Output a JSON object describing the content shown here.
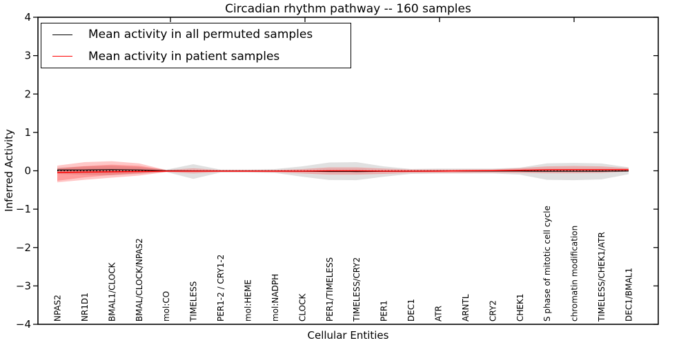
{
  "figure": {
    "title": "Circadian rhythm pathway -- 160 samples",
    "xlabel": "Cellular Entities",
    "ylabel": "Inferred Activity"
  },
  "legend": {
    "items": [
      {
        "label": "Mean activity in all permuted samples",
        "color": "#000000"
      },
      {
        "label": "Mean activity in patient samples",
        "color": "#ff0000"
      }
    ]
  },
  "chart_data": {
    "type": "line",
    "title": "Circadian rhythm pathway -- 160 samples",
    "xlabel": "Cellular Entities",
    "ylabel": "Inferred Activity",
    "ylim": [
      -4,
      4
    ],
    "yticks": [
      4,
      3,
      2,
      1,
      0,
      -1,
      -2,
      -3,
      -4
    ],
    "grid": false,
    "legend_position": "upper left",
    "zero_line": true,
    "categories": [
      "NPAS2",
      "NR1D1",
      "BMAL1/CLOCK",
      "BMAL/CLOCK/NPAS2",
      "mol:CO",
      "TIMELESS",
      "PER1-2 / CRY1-2",
      "mol:HEME",
      "mol:NADPH",
      "CLOCK",
      "PER1/TIMELESS",
      "TIMELESS/CRY2",
      "PER1",
      "DEC1",
      "ATR",
      "ARNTL",
      "CRY2",
      "CHEK1",
      "S phase of mitotic cell cycle",
      "chromatin modification",
      "TIMELESS/CHEK1/ATR",
      "DEC1/BMAL1"
    ],
    "series": [
      {
        "name": "Mean activity in all permuted samples",
        "color": "#000000",
        "values": [
          0.02,
          0.022,
          0.03,
          0.022,
          0.0,
          -0.002,
          -0.008,
          -0.008,
          -0.008,
          -0.01,
          -0.018,
          -0.02,
          -0.015,
          -0.01,
          -0.008,
          -0.008,
          -0.008,
          -0.008,
          -0.012,
          -0.012,
          -0.01,
          -0.005
        ]
      },
      {
        "name": "Mean activity in patient samples",
        "color": "#ff0000",
        "values": [
          -0.045,
          -0.035,
          -0.027,
          -0.018,
          -0.009,
          -0.009,
          -0.009,
          -0.009,
          -0.009,
          -0.009,
          0.0,
          0.0,
          -0.009,
          -0.009,
          -0.009,
          0.0,
          0.005,
          0.015,
          0.025,
          0.027,
          0.027,
          0.027
        ]
      }
    ],
    "bands": [
      {
        "series": "permuted",
        "color": "rgba(130,130,130,0.25)",
        "upper": [
          0.08,
          0.115,
          0.135,
          0.1,
          0.025,
          0.17,
          0.03,
          0.03,
          0.045,
          0.115,
          0.215,
          0.225,
          0.115,
          0.045,
          0.055,
          0.055,
          0.055,
          0.08,
          0.195,
          0.205,
          0.19,
          0.09
        ],
        "lower": [
          -0.08,
          -0.1,
          -0.115,
          -0.08,
          -0.03,
          -0.21,
          -0.045,
          -0.045,
          -0.055,
          -0.155,
          -0.24,
          -0.245,
          -0.155,
          -0.08,
          -0.07,
          -0.07,
          -0.07,
          -0.1,
          -0.235,
          -0.245,
          -0.225,
          -0.09
        ]
      },
      {
        "series": "patient",
        "color": "rgba(255,0,0,0.22)",
        "upper": [
          0.135,
          0.225,
          0.25,
          0.195,
          0.02,
          0.065,
          0.02,
          0.02,
          0.02,
          0.045,
          0.09,
          0.09,
          0.06,
          0.035,
          0.035,
          0.035,
          0.035,
          0.07,
          0.115,
          0.125,
          0.115,
          0.07
        ],
        "lower": [
          -0.3,
          -0.235,
          -0.18,
          -0.125,
          -0.035,
          -0.07,
          -0.035,
          -0.035,
          -0.045,
          -0.07,
          -0.1,
          -0.1,
          -0.08,
          -0.055,
          -0.055,
          -0.055,
          -0.05,
          -0.055,
          -0.065,
          -0.065,
          -0.055,
          -0.02
        ]
      },
      {
        "series": "patient-inner",
        "color": "rgba(255,0,0,0.22)",
        "indices": [
          0,
          1,
          2,
          3,
          4
        ],
        "upper": [
          0.06,
          0.12,
          0.16,
          0.13,
          0.02
        ],
        "lower": [
          -0.26,
          -0.17,
          -0.11,
          -0.065,
          -0.03
        ]
      }
    ]
  }
}
